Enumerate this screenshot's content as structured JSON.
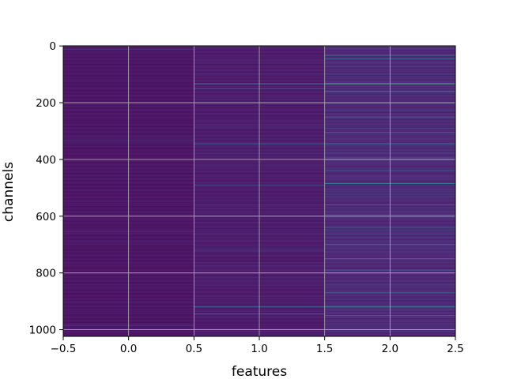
{
  "chart_data": {
    "type": "heatmap",
    "title": "",
    "xlabel": "features",
    "ylabel": "channels",
    "xlim": [
      -0.5,
      2.5
    ],
    "ylim": [
      1023.5,
      -0.5
    ],
    "rows": 1024,
    "columns": 3,
    "colormap": "viridis",
    "value_range": [
      0,
      1
    ],
    "grid": true,
    "x_ticks": [
      -0.5,
      0.0,
      0.5,
      1.0,
      1.5,
      2.0,
      2.5
    ],
    "x_tick_labels": [
      "−0.5",
      "0.0",
      "0.5",
      "1.0",
      "1.5",
      "2.0",
      "2.5"
    ],
    "y_ticks": [
      0,
      200,
      400,
      600,
      800,
      1000
    ],
    "y_tick_labels": [
      "0",
      "200",
      "400",
      "600",
      "800",
      "1000"
    ],
    "background_level": [
      0.03,
      0.05,
      0.09
    ],
    "noise_level": [
      0.05,
      0.07,
      0.09
    ],
    "bright_bands": [
      {
        "column": 0,
        "channel": 12,
        "value": 0.18
      },
      {
        "column": 0,
        "channel": 335,
        "value": 0.17
      },
      {
        "column": 0,
        "channel": 655,
        "value": 0.17
      },
      {
        "column": 0,
        "channel": 985,
        "value": 0.2
      },
      {
        "column": 1,
        "channel": 133,
        "value": 0.45
      },
      {
        "column": 1,
        "channel": 150,
        "value": 0.3
      },
      {
        "column": 1,
        "channel": 345,
        "value": 0.35
      },
      {
        "column": 1,
        "channel": 490,
        "value": 0.28
      },
      {
        "column": 1,
        "channel": 720,
        "value": 0.22
      },
      {
        "column": 1,
        "channel": 920,
        "value": 0.42
      },
      {
        "column": 1,
        "channel": 945,
        "value": 0.3
      },
      {
        "column": 2,
        "channel": 33,
        "value": 0.4
      },
      {
        "column": 2,
        "channel": 45,
        "value": 0.35
      },
      {
        "column": 2,
        "channel": 133,
        "value": 0.85
      },
      {
        "column": 2,
        "channel": 160,
        "value": 0.4
      },
      {
        "column": 2,
        "channel": 250,
        "value": 0.3
      },
      {
        "column": 2,
        "channel": 305,
        "value": 0.35
      },
      {
        "column": 2,
        "channel": 345,
        "value": 0.4
      },
      {
        "column": 2,
        "channel": 400,
        "value": 0.45
      },
      {
        "column": 2,
        "channel": 440,
        "value": 0.3
      },
      {
        "column": 2,
        "channel": 485,
        "value": 0.5
      },
      {
        "column": 2,
        "channel": 560,
        "value": 0.35
      },
      {
        "column": 2,
        "channel": 595,
        "value": 0.32
      },
      {
        "column": 2,
        "channel": 640,
        "value": 0.3
      },
      {
        "column": 2,
        "channel": 700,
        "value": 0.35
      },
      {
        "column": 2,
        "channel": 750,
        "value": 0.4
      },
      {
        "column": 2,
        "channel": 790,
        "value": 0.3
      },
      {
        "column": 2,
        "channel": 870,
        "value": 0.38
      },
      {
        "column": 2,
        "channel": 920,
        "value": 0.55
      },
      {
        "column": 2,
        "channel": 950,
        "value": 0.4
      }
    ]
  }
}
